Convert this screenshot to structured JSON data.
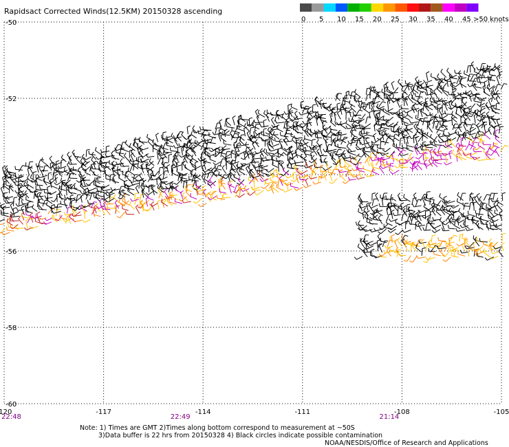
{
  "header": {
    "title": "Rapidsact Corrected Winds(12.5KM) 20150328 ascending"
  },
  "colorbar": {
    "colors": [
      "#4a4a4a",
      "#9a9a9a",
      "#00d8ff",
      "#0058ff",
      "#00b000",
      "#20d000",
      "#ffd800",
      "#ff9800",
      "#ff5800",
      "#ff1010",
      "#b01818",
      "#a05a20",
      "#ff00ff",
      "#c000c0",
      "#8000ff"
    ],
    "labels": [
      "0",
      "5",
      "10",
      "15",
      "20",
      "25",
      "30",
      "35",
      "40",
      "45",
      ">50 knots"
    ]
  },
  "chart_data": {
    "type": "scatter",
    "description_of_marks": "wind barbs along swath",
    "x_ticks": [
      "-120",
      "-117",
      "-114",
      "-111",
      "-108",
      "-105"
    ],
    "y_ticks": [
      "-50",
      "-52",
      "-54",
      "-56",
      "-58",
      "-60"
    ],
    "xlim": [
      -120,
      -105
    ],
    "ylim": [
      -60,
      -50
    ],
    "grid": true,
    "time_labels": [
      {
        "lon": -120,
        "text": "22:48"
      },
      {
        "lon": -114.9,
        "text": "22:49"
      },
      {
        "lon": -108.6,
        "text": "21:14"
      }
    ]
  },
  "footer": {
    "note1": "Note: 1) Times are GMT 2)Times along bottom correspond to measurement at ~50S",
    "note2": "3)Data buffer is 22 hrs from 20150328 4) Black circles indicate possible contamination",
    "credit": "NOAA/NESDIS/Office of Research and Applications"
  }
}
